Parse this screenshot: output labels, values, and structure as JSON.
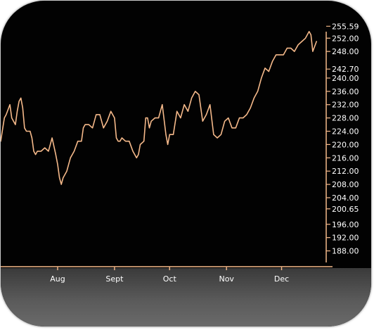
{
  "chart_data": {
    "type": "line",
    "title": "",
    "xlabel": "",
    "ylabel": "",
    "y_axis_position": "right",
    "grid": false,
    "ylim": [
      186.0,
      256.5
    ],
    "y_ticks": [
      255.59,
      252.0,
      248.0,
      242.7,
      240.0,
      236.0,
      232.0,
      228.0,
      224.0,
      220.0,
      216.0,
      212.0,
      208.0,
      204.0,
      200.65,
      196.0,
      192.0,
      188.0
    ],
    "y_tick_labels": [
      "255.59",
      "252.00",
      "248.00",
      "242.70",
      "240.00",
      "236.00",
      "232.00",
      "228.00",
      "224.00",
      "220.00",
      "216.00",
      "212.00",
      "208.00",
      "204.00",
      "200.65",
      "196.00",
      "192.00",
      "188.00"
    ],
    "x_tick_labels": [
      {
        "label": "Aug",
        "day": 31
      },
      {
        "label": "Sept",
        "day": 62
      },
      {
        "label": "Oct",
        "day": 92
      },
      {
        "label": "Nov",
        "day": 123
      },
      {
        "label": "Dec",
        "day": 153
      }
    ],
    "xlim": [
      0,
      175
    ],
    "series": [
      {
        "color": "#f5b98a",
        "x": [
          0,
          2,
          3,
          5,
          6,
          8,
          9,
          10,
          11,
          12,
          13,
          14,
          16,
          17,
          18,
          19,
          20,
          22,
          24,
          26,
          28,
          30,
          31,
          32,
          33,
          34,
          36,
          38,
          40,
          42,
          44,
          45,
          46,
          48,
          50,
          52,
          54,
          56,
          58,
          60,
          62,
          63,
          64,
          65,
          66,
          68,
          70,
          72,
          74,
          75,
          76,
          78,
          79,
          80,
          81,
          82,
          84,
          86,
          88,
          90,
          91,
          92,
          94,
          96,
          98,
          100,
          102,
          104,
          106,
          108,
          110,
          112,
          114,
          116,
          118,
          120,
          122,
          124,
          126,
          128,
          130,
          132,
          134,
          136,
          138,
          140,
          142,
          144,
          146,
          148,
          150,
          152,
          154,
          156,
          158,
          160,
          162,
          164,
          166,
          168,
          169,
          170,
          172
        ],
        "y": [
          221,
          228,
          229,
          232,
          228,
          226,
          230,
          233,
          234,
          231,
          225,
          224,
          224,
          222,
          218,
          217,
          218,
          218,
          219,
          218,
          222,
          217,
          214,
          210,
          208,
          210,
          212,
          216,
          218,
          221,
          221,
          225,
          226,
          226,
          225,
          229,
          229,
          225,
          227,
          230,
          228,
          222,
          221,
          221,
          222,
          221,
          221,
          218,
          216,
          217,
          220,
          221,
          228,
          228,
          225,
          227,
          228,
          228,
          232,
          223,
          220,
          223,
          223,
          230,
          228,
          232,
          230,
          234,
          236,
          235,
          227,
          229,
          232,
          223,
          222,
          223,
          227,
          228,
          225,
          225,
          228,
          228,
          229,
          231,
          234,
          236,
          240,
          243,
          242,
          245,
          247,
          247,
          247,
          249,
          249,
          248,
          250,
          251,
          252,
          254,
          253,
          248,
          251
        ]
      }
    ]
  }
}
